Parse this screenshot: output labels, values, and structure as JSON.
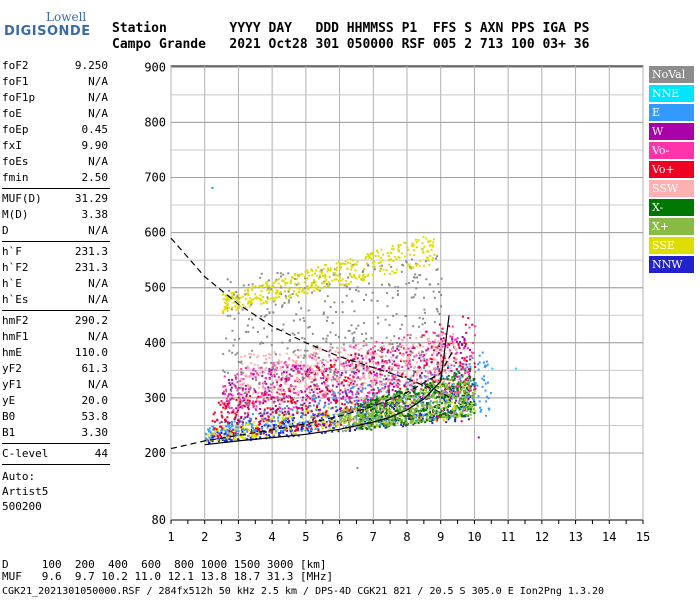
{
  "logo": {
    "line1": "Lowell",
    "line2": "DIGISONDE"
  },
  "header": {
    "labels": "Station        YYYY DAY   DDD HHMMSS P1  FFS S AXN PPS IGA PS",
    "values": "Campo Grande   2021 Oct28 301 050000 RSF 005 2 713 100 03+ 36"
  },
  "params": [
    {
      "k": "foF2",
      "v": "9.250"
    },
    {
      "k": "foF1",
      "v": "N/A"
    },
    {
      "k": "foF1p",
      "v": "N/A"
    },
    {
      "k": "foE",
      "v": "N/A"
    },
    {
      "k": "foEp",
      "v": "0.45"
    },
    {
      "k": "fxI",
      "v": "9.90"
    },
    {
      "k": "foEs",
      "v": "N/A"
    },
    {
      "k": "fmin",
      "v": "2.50",
      "sep": true
    },
    {
      "k": "MUF(D)",
      "v": "31.29"
    },
    {
      "k": "M(D)",
      "v": "3.38"
    },
    {
      "k": "D",
      "v": "N/A",
      "sep": true
    },
    {
      "k": "h`F",
      "v": "231.3"
    },
    {
      "k": "h`F2",
      "v": "231.3"
    },
    {
      "k": "h`E",
      "v": "N/A"
    },
    {
      "k": "h`Es",
      "v": "N/A",
      "sep": true
    },
    {
      "k": "hmF2",
      "v": "290.2"
    },
    {
      "k": "hmF1",
      "v": "N/A"
    },
    {
      "k": "hmE",
      "v": "110.0"
    },
    {
      "k": "yF2",
      "v": "61.3"
    },
    {
      "k": "yF1",
      "v": "N/A"
    },
    {
      "k": "yE",
      "v": "20.0"
    },
    {
      "k": "B0",
      "v": "53.8"
    },
    {
      "k": "B1",
      "v": "3.30",
      "sep": true
    },
    {
      "k": "C-level",
      "v": "44",
      "sep": true
    }
  ],
  "autoscale": {
    "line1": "Auto:",
    "line2": "Artist5",
    "line3": "500200"
  },
  "legend": [
    {
      "label": "NoVal",
      "color": "#8c8c8c"
    },
    {
      "label": "NNE",
      "color": "#00e5ff"
    },
    {
      "label": "E",
      "color": "#3399ff"
    },
    {
      "label": "W",
      "color": "#aa00aa"
    },
    {
      "label": "Vo-",
      "color": "#ff33aa"
    },
    {
      "label": "Vo+",
      "color": "#ee0022"
    },
    {
      "label": "SSW",
      "color": "#ffb0b0"
    },
    {
      "label": "X-",
      "color": "#007700"
    },
    {
      "label": "X+",
      "color": "#88bb44"
    },
    {
      "label": "SSE",
      "color": "#dddd00"
    },
    {
      "label": "NNW",
      "color": "#2222cc"
    }
  ],
  "footer": {
    "d_row": "D     100  200  400  600  800 1000 1500 3000 [km]",
    "muf_row": "MUF   9.6  9.7 10.2 11.0 12.1 13.8 18.7 31.3 [MHz]",
    "file_row": "CGK21_2021301050000.RSF / 284fx512h 50 kHz 2.5 km / DPS-4D CGK21 821 / 20.5 S 305.0 E Ion2Png 1.3.20"
  },
  "chart_data": {
    "type": "scatter",
    "title": "",
    "xlabel": "",
    "ylabel": "",
    "xlim": [
      1,
      15
    ],
    "ylim": [
      80,
      900
    ],
    "x_ticks": [
      1,
      2,
      3,
      4,
      5,
      6,
      7,
      8,
      9,
      10,
      11,
      12,
      13,
      14,
      15
    ],
    "y_ticks": [
      80,
      200,
      300,
      400,
      500,
      600,
      700,
      800,
      900
    ],
    "grid": true,
    "legend_position": "right",
    "trace_bands": [
      {
        "name": "NNW",
        "color": "#2222cc",
        "x": [
          2.0,
          10.0
        ],
        "y_lo": [
          218,
          262
        ],
        "y_hi": [
          235,
          330
        ]
      },
      {
        "name": "SSE",
        "color": "#dddd00",
        "x": [
          2.0,
          10.0
        ],
        "y_lo": [
          222,
          265
        ],
        "y_hi": [
          245,
          345
        ]
      },
      {
        "name": "E",
        "color": "#3399ff",
        "x": [
          2.0,
          10.5
        ],
        "y_lo": [
          225,
          270
        ],
        "y_hi": [
          250,
          390
        ]
      },
      {
        "name": "W",
        "color": "#aa00aa",
        "x": [
          2.5,
          10.0
        ],
        "y_lo": [
          250,
          300
        ],
        "y_hi": [
          340,
          420
        ]
      },
      {
        "name": "Vo-",
        "color": "#ff33aa",
        "x": [
          2.5,
          10.0
        ],
        "y_lo": [
          270,
          310
        ],
        "y_hi": [
          350,
          440
        ]
      },
      {
        "name": "Vo+",
        "color": "#ee0022",
        "x": [
          2.2,
          10.0
        ],
        "y_lo": [
          230,
          260
        ],
        "y_hi": [
          290,
          460
        ]
      },
      {
        "name": "SSW",
        "color": "#ffb0b0",
        "x": [
          3.0,
          9.5
        ],
        "y_lo": [
          300,
          330
        ],
        "y_hi": [
          380,
          420
        ]
      },
      {
        "name": "X-",
        "color": "#007700",
        "x": [
          6.5,
          10.0
        ],
        "y_lo": [
          240,
          270
        ],
        "y_hi": [
          290,
          360
        ]
      },
      {
        "name": "X+",
        "color": "#88bb44",
        "x": [
          6.0,
          10.0
        ],
        "y_lo": [
          240,
          270
        ],
        "y_hi": [
          280,
          350
        ]
      },
      {
        "name": "NoVal",
        "color": "#8c8c8c",
        "x": [
          2.5,
          9.0
        ],
        "y_lo": [
          280,
          330
        ],
        "y_hi": [
          520,
          560
        ]
      },
      {
        "name": "SSE",
        "color": "#dddd00",
        "x": [
          2.5,
          8.8
        ],
        "y_lo": [
          455,
          545
        ],
        "y_hi": [
          490,
          600
        ]
      }
    ],
    "profile_curve": {
      "color": "#000000",
      "x": [
        2.0,
        3.0,
        4.0,
        5.0,
        6.0,
        7.0,
        7.5,
        8.0,
        8.5,
        9.0,
        9.25
      ],
      "y": [
        215,
        222,
        228,
        234,
        243,
        256,
        265,
        278,
        298,
        330,
        450
      ]
    },
    "muf_curve": {
      "color": "#000000",
      "dash": true,
      "x": [
        1.0,
        1.5,
        2.0,
        2.5,
        3.0,
        3.5,
        4.0,
        5.0,
        6.0,
        7.0,
        8.0,
        9.0,
        9.3
      ],
      "y": [
        590,
        555,
        520,
        495,
        470,
        450,
        430,
        400,
        375,
        355,
        335,
        310,
        300
      ]
    },
    "hvirt_dashed": {
      "color": "#000000",
      "dash": true,
      "x": [
        1.0,
        2.0,
        3.0,
        4.0,
        5.0,
        6.0,
        7.0,
        8.0,
        9.0,
        9.4
      ],
      "y": [
        208,
        222,
        232,
        242,
        253,
        267,
        285,
        310,
        345,
        390
      ]
    },
    "outliers": [
      {
        "x": 2.2,
        "y": 683,
        "color": "#00aaaa"
      },
      {
        "x": 10.5,
        "y": 355,
        "color": "#00e5ff"
      },
      {
        "x": 11.2,
        "y": 355,
        "color": "#00e5ff"
      },
      {
        "x": 10.1,
        "y": 230,
        "color": "#aa00aa"
      },
      {
        "x": 6.5,
        "y": 175,
        "color": "#8c8c8c"
      }
    ]
  }
}
